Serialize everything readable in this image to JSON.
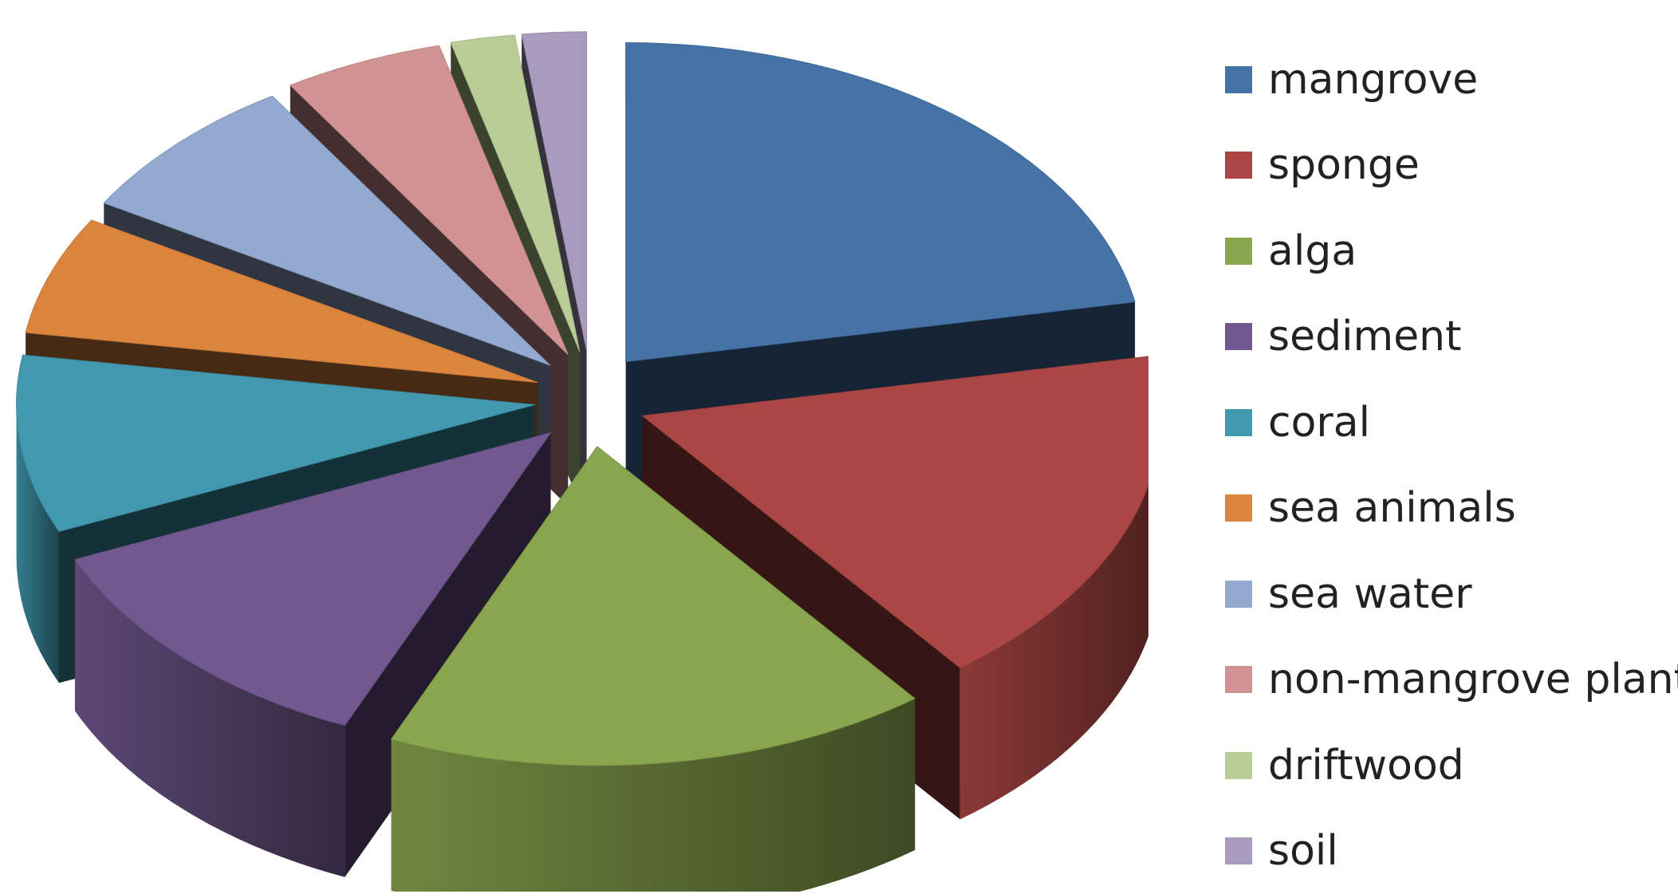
{
  "chart_data": {
    "type": "pie",
    "style": "3d-exploded",
    "title": "",
    "legend_position": "right",
    "categories": [
      "mangrove",
      "sponge",
      "alga",
      "sediment",
      "coral",
      "sea animals",
      "sea water",
      "non-mangrove plants",
      "driftwood",
      "soil"
    ],
    "values": [
      22.0,
      17.5,
      17.0,
      12.0,
      9.0,
      6.0,
      7.5,
      5.0,
      2.0,
      2.0
    ],
    "unit": "percent",
    "colors": [
      "#4572A7",
      "#AA4643",
      "#89A54E",
      "#71588F",
      "#4198AF",
      "#DB843D",
      "#93A9CF",
      "#D19392",
      "#B9CD96",
      "#A99BBD"
    ]
  }
}
